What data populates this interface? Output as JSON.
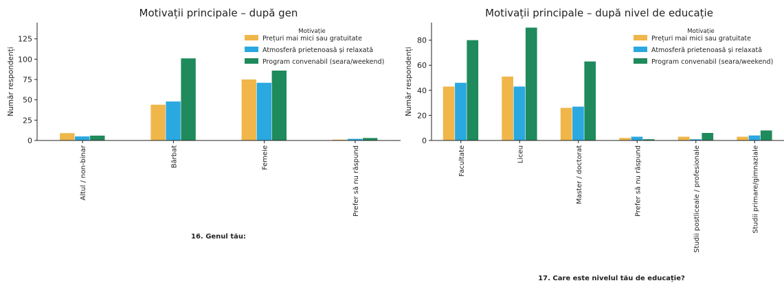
{
  "chart_data": [
    {
      "type": "bar",
      "title": "Motivații principale – după gen",
      "xlabel": "16. Genul tău:",
      "ylabel": "Număr respondenți",
      "ylim": [
        0,
        145
      ],
      "yticks": [
        0,
        25,
        50,
        75,
        100,
        125
      ],
      "grid": false,
      "legend_title": "Motivație",
      "legend_position": "top-right",
      "categories": [
        "Altul / non-binar",
        "Bărbat",
        "Femeie",
        "Prefer să nu răspund"
      ],
      "series": [
        {
          "name": "Prețuri mai mici sau gratuitate",
          "color": "#f0b64a",
          "values": [
            9,
            44,
            75,
            1
          ]
        },
        {
          "name": "Atmosferă prietenoasă și relaxată",
          "color": "#2aa8e0",
          "values": [
            5,
            48,
            71,
            2
          ]
        },
        {
          "name": "Program convenabil (seara/weekend)",
          "color": "#1f8a5c",
          "values": [
            6,
            101,
            86,
            3
          ]
        }
      ]
    },
    {
      "type": "bar",
      "title": "Motivații principale – după nivel de educație",
      "xlabel": "17. Care este nivelul tău de educație?",
      "ylabel": "Număr respondenți",
      "ylim": [
        0,
        94
      ],
      "yticks": [
        0,
        20,
        40,
        60,
        80
      ],
      "grid": false,
      "legend_title": "Motivație",
      "legend_position": "top-right",
      "categories": [
        "Facultate",
        "Liceu",
        "Master / doctorat",
        "Prefer să nu răspund",
        "Studii postliceale / profesionale",
        "Studii primare/gimnaziale"
      ],
      "series": [
        {
          "name": "Prețuri mai mici sau gratuitate",
          "color": "#f0b64a",
          "values": [
            43,
            51,
            26,
            2,
            3,
            3
          ]
        },
        {
          "name": "Atmosferă prietenoasă și relaxată",
          "color": "#2aa8e0",
          "values": [
            46,
            43,
            27,
            3,
            1,
            4
          ]
        },
        {
          "name": "Program convenabil (seara/weekend)",
          "color": "#1f8a5c",
          "values": [
            80,
            90,
            63,
            1,
            6,
            8
          ]
        }
      ]
    }
  ]
}
